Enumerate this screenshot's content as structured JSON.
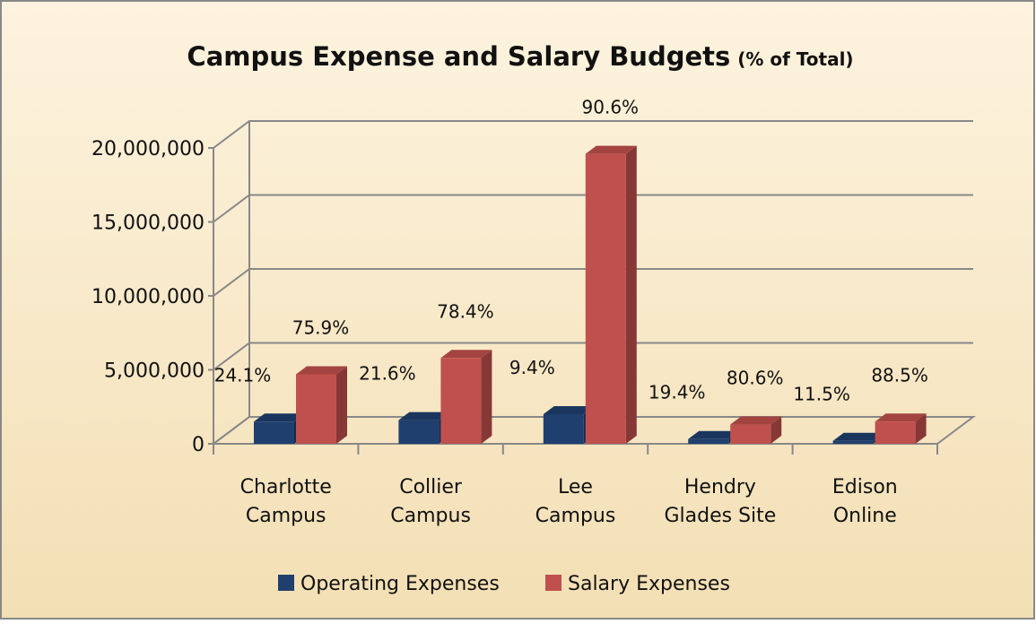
{
  "chart_data": {
    "type": "bar3d",
    "title": "Campus Expense and Salary Budgets",
    "subtitle": "(% of Total)",
    "categories": [
      [
        "Charlotte",
        "Campus"
      ],
      [
        "Collier",
        "Campus"
      ],
      [
        "Lee",
        "Campus"
      ],
      [
        "Hendry",
        "Glades Site"
      ],
      [
        "Edison",
        "Online"
      ]
    ],
    "series": [
      {
        "name": "Operating Expenses",
        "color": "#1f3f6e",
        "values": [
          1500000,
          1600000,
          2000000,
          320000,
          200000
        ],
        "labels": [
          "24.1%",
          "21.6%",
          "9.4%",
          "19.4%",
          "11.5%"
        ]
      },
      {
        "name": "Salary Expenses",
        "color": "#c0504d",
        "values": [
          4700000,
          5800000,
          19600000,
          1300000,
          1500000
        ],
        "labels": [
          "75.9%",
          "78.4%",
          "90.6%",
          "80.6%",
          "88.5%"
        ]
      }
    ],
    "ylim": [
      0,
      20000000
    ],
    "yticks": [
      0,
      {
        "value": 5000000,
        "label": "5,000,000"
      },
      {
        "value": 10000000,
        "label": "10,000,000"
      },
      {
        "value": 15000000,
        "label": "15,000,000"
      },
      {
        "value": 20000000,
        "label": "20,000,000"
      }
    ],
    "grid": true,
    "legend": "bottom"
  }
}
